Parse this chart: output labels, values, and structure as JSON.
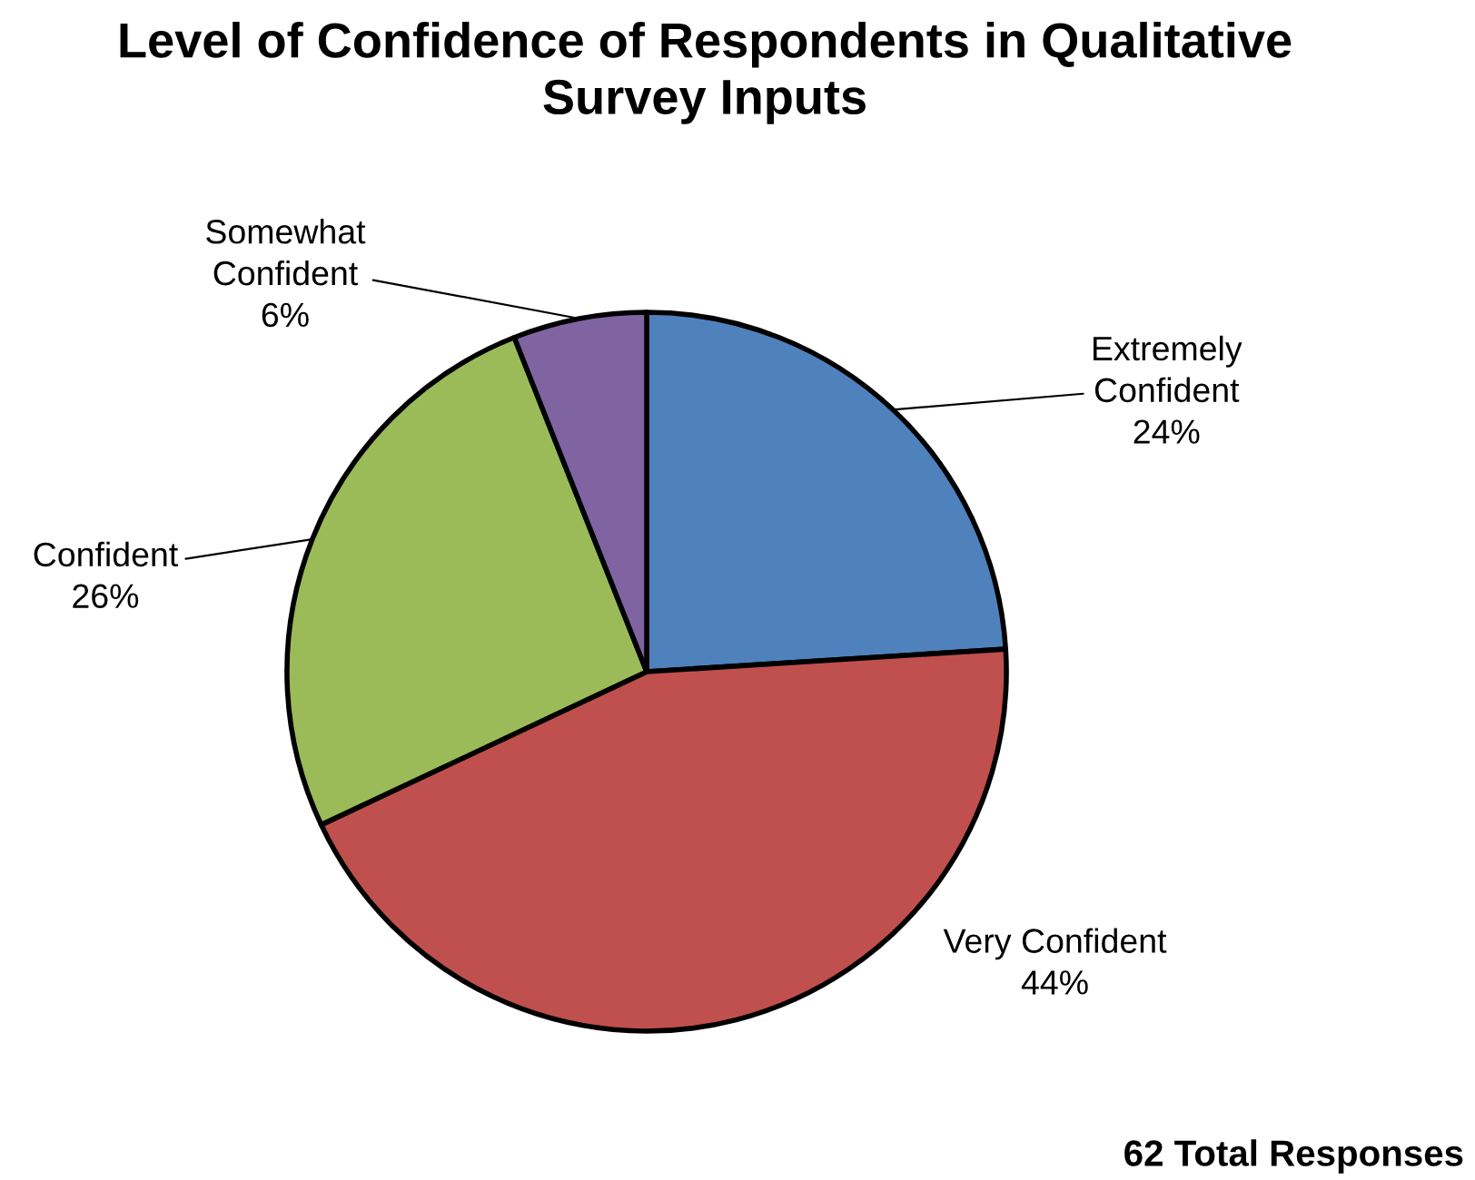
{
  "chart_data": {
    "type": "pie",
    "title": "Level of Confidence of Respondents in Qualitative Survey Inputs",
    "categories": [
      "Extremely Confident",
      "Very Confident",
      "Confident",
      "Somewhat Confident"
    ],
    "values": [
      24,
      44,
      26,
      6
    ],
    "colors": [
      "#4f81bd",
      "#c0504d",
      "#9bbb59",
      "#8064a2"
    ],
    "value_labels": [
      "24%",
      "44%",
      "26%",
      "6%"
    ],
    "annotations": [
      "62 Total Responses"
    ]
  }
}
